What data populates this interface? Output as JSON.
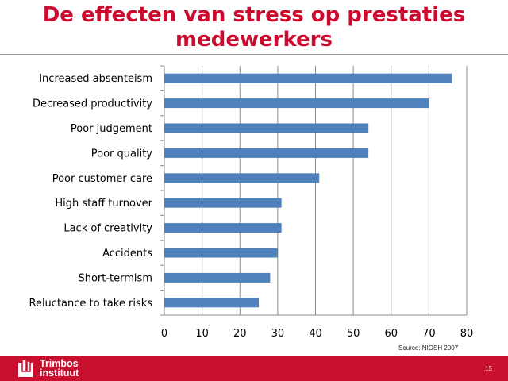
{
  "slide": {
    "title": "De effecten van stress op prestaties medewerkers",
    "source": "Source: NIOSH 2007",
    "page_number": "15"
  },
  "logo": {
    "line1": "Trimbos",
    "line2": "instituut",
    "icon": "trimbos-logo-icon"
  },
  "colors": {
    "title": "#cc0a2f",
    "bar": "#4f81bd",
    "footer": "#c8102e"
  },
  "chart_data": {
    "type": "bar",
    "orientation": "horizontal",
    "categories": [
      "Increased absenteism",
      "Decreased productivity",
      "Poor judgement",
      "Poor quality",
      "Poor customer care",
      "High staff turnover",
      "Lack of creativity",
      "Accidents",
      "Short-termism",
      "Reluctance to take risks"
    ],
    "values": [
      76,
      70,
      54,
      54,
      41,
      31,
      31,
      30,
      28,
      25
    ],
    "xlim": [
      0,
      80
    ],
    "xticks": [
      0,
      10,
      20,
      30,
      40,
      50,
      60,
      70,
      80
    ],
    "grid": "vertical",
    "legend": "none"
  }
}
